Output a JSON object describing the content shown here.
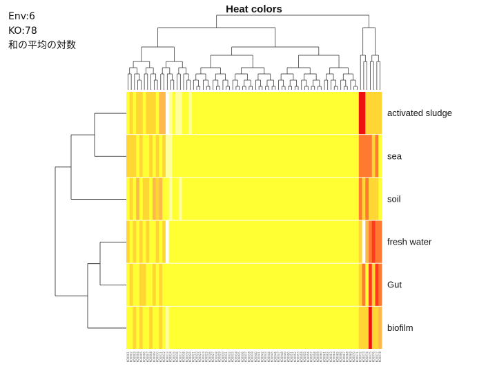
{
  "notes": {
    "env": "Env:6",
    "ko": "KO:78",
    "caption": "和の平均の対数"
  },
  "chart_data": {
    "type": "heatmap",
    "title": "Heat colors",
    "rows": [
      "activated sludge",
      "sea",
      "soil",
      "fresh water",
      "Gut",
      "biofilm"
    ],
    "columns": [
      "K00001",
      "K00002",
      "K00003",
      "K00004",
      "K00005",
      "K00006",
      "K00007",
      "K00008",
      "K00009",
      "K00010",
      "K00011",
      "K00012",
      "K00013",
      "K00014",
      "K00015",
      "K00016",
      "K00017",
      "K00018",
      "K00019",
      "K00020",
      "K00021",
      "K00022",
      "K00023",
      "K00024",
      "K00025",
      "K00026",
      "K00027",
      "K00028",
      "K00029",
      "K00030",
      "K00031",
      "K00032",
      "K00033",
      "K00034",
      "K00035",
      "K00036",
      "K00037",
      "K00038",
      "K00039",
      "K00040",
      "K00041",
      "K00042",
      "K00043",
      "K00044",
      "K00045",
      "K00046",
      "K00047",
      "K00048",
      "K00049",
      "K00050",
      "K00051",
      "K00052",
      "K00053",
      "K00054",
      "K00055",
      "K00056",
      "K00057",
      "K00058",
      "K00059",
      "K00060",
      "K00061",
      "K00062",
      "K00063",
      "K00064",
      "K00065",
      "K00066",
      "K00067",
      "K00068",
      "K00069",
      "K00070",
      "K00071",
      "K00072",
      "K00073",
      "K00074",
      "K00075",
      "K00076",
      "K00077",
      "K00078"
    ],
    "color_scale": [
      "#ffffff",
      "#ffff9e",
      "#ffff33",
      "#ffd633",
      "#ffb84a",
      "#ff7a30",
      "#ff3b1f",
      "#ee1111"
    ],
    "matrix": [
      [
        2,
        3,
        2,
        3,
        3,
        2,
        3,
        3,
        3,
        2,
        4,
        4,
        0,
        1,
        2,
        1,
        1,
        2,
        2,
        1,
        2,
        2,
        2,
        2,
        2,
        2,
        2,
        2,
        2,
        2,
        2,
        2,
        2,
        2,
        2,
        2,
        2,
        2,
        2,
        2,
        2,
        2,
        2,
        2,
        2,
        2,
        2,
        2,
        2,
        2,
        2,
        2,
        2,
        2,
        2,
        2,
        2,
        2,
        2,
        2,
        2,
        2,
        2,
        2,
        2,
        2,
        2,
        2,
        2,
        2,
        2,
        7,
        7,
        3,
        3,
        3,
        3,
        3
      ],
      [
        3,
        3,
        3,
        2,
        3,
        2,
        2,
        3,
        2,
        3,
        2,
        3,
        1,
        1,
        2,
        2,
        2,
        2,
        2,
        2,
        2,
        2,
        2,
        2,
        2,
        2,
        2,
        2,
        2,
        2,
        2,
        2,
        2,
        2,
        2,
        2,
        2,
        2,
        2,
        2,
        2,
        2,
        2,
        2,
        2,
        2,
        2,
        2,
        2,
        2,
        2,
        2,
        2,
        2,
        2,
        2,
        2,
        2,
        2,
        2,
        2,
        2,
        2,
        2,
        2,
        2,
        2,
        2,
        2,
        2,
        2,
        5,
        5,
        5,
        5,
        3,
        5,
        2
      ],
      [
        2,
        3,
        2,
        4,
        2,
        3,
        3,
        2,
        4,
        3,
        4,
        2,
        2,
        1,
        2,
        2,
        1,
        2,
        2,
        2,
        2,
        2,
        2,
        2,
        2,
        2,
        2,
        2,
        2,
        2,
        2,
        2,
        2,
        2,
        2,
        2,
        2,
        2,
        2,
        2,
        2,
        2,
        2,
        2,
        2,
        2,
        2,
        2,
        2,
        2,
        2,
        2,
        2,
        2,
        2,
        2,
        2,
        2,
        2,
        2,
        2,
        2,
        2,
        2,
        2,
        2,
        2,
        2,
        2,
        2,
        2,
        5,
        3,
        5,
        3,
        3,
        3,
        2
      ],
      [
        3,
        2,
        3,
        2,
        3,
        2,
        3,
        2,
        2,
        3,
        2,
        3,
        0,
        2,
        2,
        2,
        2,
        2,
        2,
        2,
        2,
        2,
        2,
        2,
        2,
        2,
        2,
        2,
        2,
        2,
        2,
        2,
        2,
        2,
        2,
        2,
        2,
        2,
        2,
        2,
        2,
        2,
        2,
        2,
        2,
        2,
        2,
        2,
        2,
        2,
        2,
        2,
        2,
        2,
        2,
        2,
        2,
        2,
        2,
        2,
        2,
        2,
        2,
        2,
        2,
        2,
        2,
        2,
        2,
        2,
        2,
        3,
        0,
        4,
        5,
        6,
        5,
        5
      ],
      [
        2,
        3,
        2,
        2,
        3,
        3,
        2,
        2,
        3,
        2,
        3,
        2,
        2,
        2,
        2,
        2,
        2,
        2,
        2,
        2,
        2,
        2,
        2,
        2,
        2,
        2,
        2,
        2,
        2,
        2,
        2,
        2,
        2,
        2,
        2,
        2,
        2,
        2,
        2,
        2,
        2,
        2,
        2,
        2,
        2,
        2,
        2,
        2,
        2,
        2,
        2,
        2,
        2,
        2,
        2,
        2,
        2,
        2,
        2,
        2,
        2,
        2,
        2,
        2,
        2,
        2,
        2,
        2,
        2,
        2,
        2,
        3,
        5,
        2,
        6,
        3,
        6,
        5
      ],
      [
        2,
        2,
        3,
        2,
        3,
        2,
        2,
        3,
        2,
        2,
        3,
        2,
        1,
        2,
        2,
        2,
        2,
        2,
        2,
        2,
        2,
        2,
        2,
        2,
        2,
        2,
        2,
        2,
        2,
        2,
        2,
        2,
        2,
        2,
        2,
        2,
        2,
        2,
        2,
        2,
        2,
        2,
        2,
        2,
        2,
        2,
        2,
        2,
        2,
        2,
        2,
        2,
        2,
        2,
        2,
        2,
        2,
        2,
        2,
        2,
        2,
        2,
        2,
        2,
        2,
        2,
        2,
        2,
        2,
        2,
        2,
        3,
        3,
        3,
        7,
        3,
        3,
        4
      ]
    ],
    "row_order_dendrogram": "((activated sludge, sea), soil), ((fresh water, Gut), biofilm)",
    "column_dendrogram": "two main clusters: columns 1-71 (low abundance) and columns 72-78 (high abundance)"
  }
}
